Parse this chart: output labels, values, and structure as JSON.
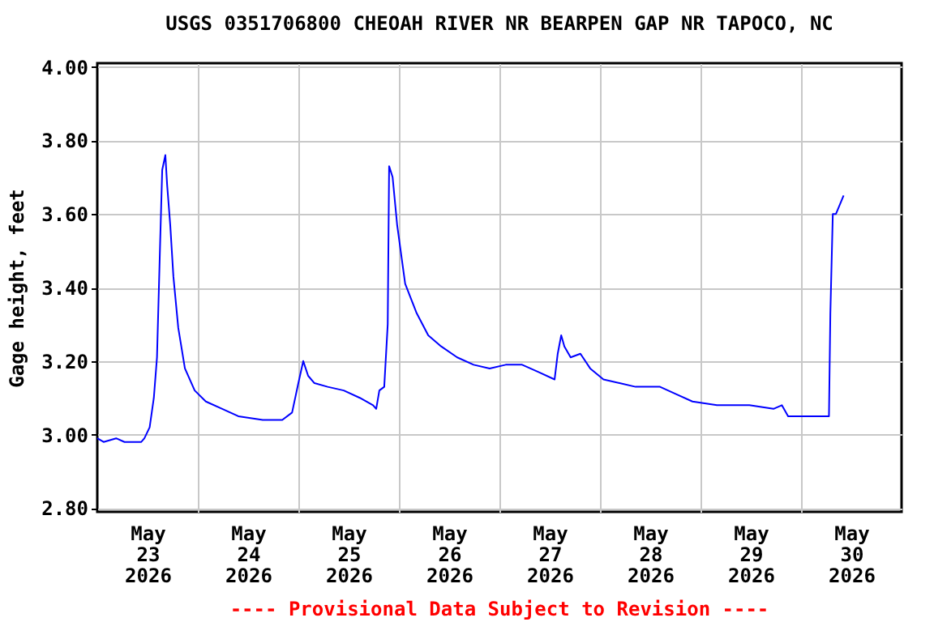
{
  "chart_data": {
    "type": "line",
    "title": "USGS 0351706800 CHEOAH RIVER NR BEARPEN GAP NR TAPOCO, NC",
    "ylabel": "Gage height, feet",
    "annotations": [
      "---- Provisional Data Subject to Revision ----"
    ],
    "xlim": [
      "2026-05-23T00:00",
      "2026-05-31T00:00"
    ],
    "xticks": [
      {
        "value": "2026-05-23T12:00",
        "label": "May 23 2026"
      },
      {
        "value": "2026-05-24T00:00",
        "label": null
      },
      {
        "value": "2026-05-24T12:00",
        "label": "May 24 2026"
      },
      {
        "value": "2026-05-25T00:00",
        "label": null
      },
      {
        "value": "2026-05-25T12:00",
        "label": "May 25 2026"
      },
      {
        "value": "2026-05-26T00:00",
        "label": null
      },
      {
        "value": "2026-05-26T12:00",
        "label": "May 26 2026"
      },
      {
        "value": "2026-05-27T00:00",
        "label": null
      },
      {
        "value": "2026-05-27T12:00",
        "label": "May 27 2026"
      },
      {
        "value": "2026-05-28T00:00",
        "label": null
      },
      {
        "value": "2026-05-28T12:00",
        "label": "May 28 2026"
      },
      {
        "value": "2026-05-29T00:00",
        "label": null
      },
      {
        "value": "2026-05-29T12:00",
        "label": "May 29 2026"
      },
      {
        "value": "2026-05-30T00:00",
        "label": null
      },
      {
        "value": "2026-05-30T12:00",
        "label": "May 30 2026"
      }
    ],
    "ylim": [
      2.79,
      4.01
    ],
    "yticks": [
      {
        "value": 2.8,
        "label": "2.80"
      },
      {
        "value": 3.0,
        "label": "3.00"
      },
      {
        "value": 3.2,
        "label": "3.20"
      },
      {
        "value": 3.4,
        "label": "3.40"
      },
      {
        "value": 3.6,
        "label": "3.60"
      },
      {
        "value": 3.8,
        "label": "3.80"
      },
      {
        "value": 4.0,
        "label": "4.00"
      }
    ],
    "grid": true,
    "marker": "none",
    "line_style": "solid",
    "series": [
      {
        "color": "#0000ff",
        "x": [
          "2026-05-23T00:00",
          "2026-05-23T01:30",
          "2026-05-23T04:30",
          "2026-05-23T06:30",
          "2026-05-23T10:30",
          "2026-05-23T11:15",
          "2026-05-23T12:30",
          "2026-05-23T13:30",
          "2026-05-23T14:15",
          "2026-05-23T15:00",
          "2026-05-23T15:30",
          "2026-05-23T16:15",
          "2026-05-23T16:40",
          "2026-05-23T17:25",
          "2026-05-23T18:10",
          "2026-05-23T19:20",
          "2026-05-23T20:55",
          "2026-05-23T23:15",
          "2026-05-24T01:55",
          "2026-05-24T05:50",
          "2026-05-24T09:40",
          "2026-05-24T15:30",
          "2026-05-24T20:10",
          "2026-05-24T22:30",
          "2026-05-25T00:00",
          "2026-05-25T01:10",
          "2026-05-25T02:20",
          "2026-05-25T03:50",
          "2026-05-25T07:00",
          "2026-05-25T10:50",
          "2026-05-25T14:40",
          "2026-05-25T17:50",
          "2026-05-25T18:35",
          "2026-05-25T19:20",
          "2026-05-25T20:30",
          "2026-05-25T21:20",
          "2026-05-25T21:40",
          "2026-05-25T22:30",
          "2026-05-25T23:35",
          "2026-05-26T01:30",
          "2026-05-26T04:15",
          "2026-05-26T07:00",
          "2026-05-26T10:05",
          "2026-05-26T13:55",
          "2026-05-26T17:50",
          "2026-05-26T21:40",
          "2026-05-27T01:30",
          "2026-05-27T05:25",
          "2026-05-27T09:20",
          "2026-05-27T13:10",
          "2026-05-27T13:55",
          "2026-05-27T14:45",
          "2026-05-27T15:30",
          "2026-05-27T17:00",
          "2026-05-27T19:20",
          "2026-05-27T21:40",
          "2026-05-28T00:50",
          "2026-05-28T04:40",
          "2026-05-28T08:30",
          "2026-05-28T14:20",
          "2026-05-28T18:10",
          "2026-05-28T22:05",
          "2026-05-29T03:55",
          "2026-05-29T11:40",
          "2026-05-29T17:25",
          "2026-05-29T19:25",
          "2026-05-29T20:55",
          "2026-05-30T06:40",
          "2026-05-30T07:00",
          "2026-05-30T07:35",
          "2026-05-30T08:20",
          "2026-05-30T10:10"
        ],
        "values": [
          2.99,
          2.98,
          2.99,
          2.98,
          2.98,
          2.99,
          3.02,
          3.1,
          3.21,
          3.52,
          3.72,
          3.76,
          3.68,
          3.57,
          3.43,
          3.29,
          3.18,
          3.12,
          3.09,
          3.07,
          3.05,
          3.04,
          3.04,
          3.06,
          3.14,
          3.2,
          3.16,
          3.14,
          3.13,
          3.12,
          3.1,
          3.08,
          3.07,
          3.12,
          3.13,
          3.3,
          3.73,
          3.7,
          3.57,
          3.41,
          3.33,
          3.27,
          3.24,
          3.21,
          3.19,
          3.18,
          3.19,
          3.19,
          3.17,
          3.15,
          3.22,
          3.27,
          3.24,
          3.21,
          3.22,
          3.18,
          3.15,
          3.14,
          3.13,
          3.13,
          3.11,
          3.09,
          3.08,
          3.08,
          3.07,
          3.08,
          3.05,
          3.05,
          3.33,
          3.6,
          3.6,
          3.65
        ]
      }
    ]
  }
}
